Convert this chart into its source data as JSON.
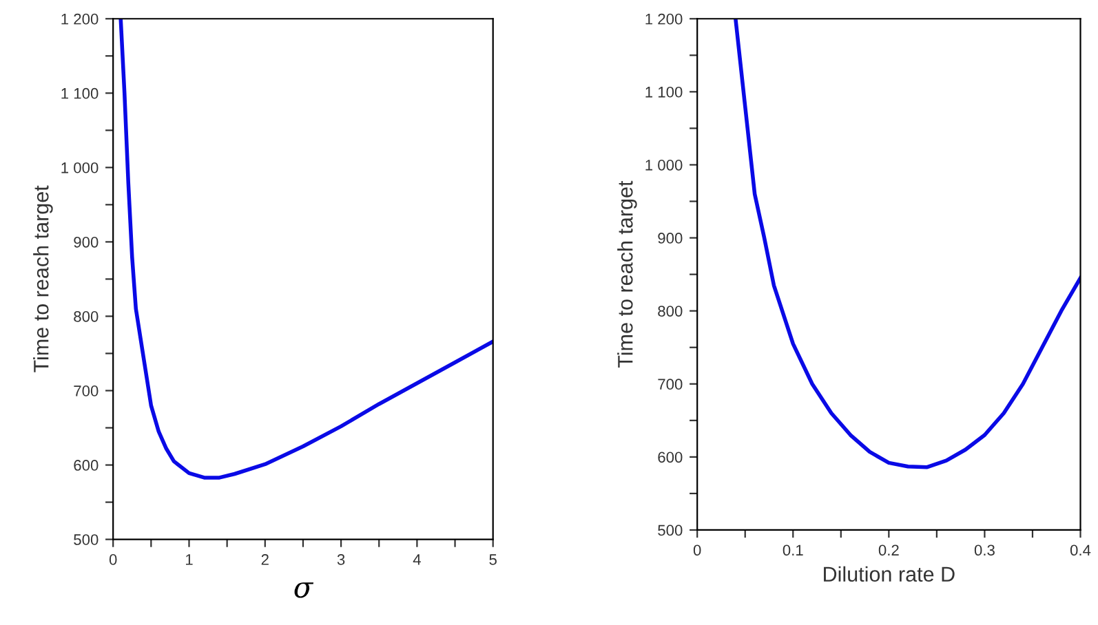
{
  "chart_data": [
    {
      "type": "line",
      "xlabel": "σ",
      "ylabel": "Time to reach target",
      "xlim": [
        0,
        5
      ],
      "ylim": [
        500,
        1200
      ],
      "xticks": [
        0,
        {
          "value": 0.5,
          "label": null
        },
        1,
        {
          "value": 1.5,
          "label": null
        },
        2,
        {
          "value": 2.5,
          "label": null
        },
        3,
        {
          "value": 3.5,
          "label": null
        },
        4,
        {
          "value": 4.5,
          "label": null
        },
        5
      ],
      "yticks": [
        500,
        {
          "value": 550,
          "label": null
        },
        600,
        {
          "value": 650,
          "label": null
        },
        700,
        {
          "value": 750,
          "label": null
        },
        800,
        {
          "value": 850,
          "label": null
        },
        900,
        {
          "value": 950,
          "label": null
        },
        {
          "value": 1000,
          "label": "1 000"
        },
        {
          "value": 1050,
          "label": null
        },
        {
          "value": 1100,
          "label": "1 100"
        },
        {
          "value": 1150,
          "label": null
        },
        {
          "value": 1200,
          "label": "1 200"
        }
      ],
      "grid": false,
      "legend": false,
      "series": [
        {
          "color": "#0a0ae6",
          "x": [
            0.1,
            0.15,
            0.2,
            0.25,
            0.3,
            0.4,
            0.5,
            0.6,
            0.7,
            0.8,
            1.0,
            1.2,
            1.4,
            1.6,
            2.0,
            2.5,
            3.0,
            3.5,
            4.0,
            4.5,
            5.0
          ],
          "values": [
            1200,
            1100,
            980,
            880,
            810,
            745,
            680,
            645,
            622,
            605,
            589,
            583,
            583,
            588,
            601,
            625,
            652,
            682,
            710,
            738,
            766
          ]
        }
      ]
    },
    {
      "type": "line",
      "xlabel": "Dilution rate D",
      "ylabel": "Time to reach target",
      "xlim": [
        0,
        0.4
      ],
      "ylim": [
        500,
        1200
      ],
      "xticks": [
        0,
        {
          "value": 0.05,
          "label": null
        },
        0.1,
        {
          "value": 0.15,
          "label": null
        },
        0.2,
        {
          "value": 0.25,
          "label": null
        },
        0.3,
        {
          "value": 0.35,
          "label": null
        },
        0.4
      ],
      "yticks": [
        500,
        {
          "value": 550,
          "label": null
        },
        600,
        {
          "value": 650,
          "label": null
        },
        700,
        {
          "value": 750,
          "label": null
        },
        800,
        {
          "value": 850,
          "label": null
        },
        900,
        {
          "value": 950,
          "label": null
        },
        {
          "value": 1000,
          "label": "1 000"
        },
        {
          "value": 1050,
          "label": null
        },
        {
          "value": 1100,
          "label": "1 100"
        },
        {
          "value": 1150,
          "label": null
        },
        {
          "value": 1200,
          "label": "1 200"
        }
      ],
      "grid": false,
      "legend": false,
      "series": [
        {
          "color": "#0a0ae6",
          "x": [
            0.04,
            0.05,
            0.06,
            0.07,
            0.08,
            0.1,
            0.12,
            0.14,
            0.16,
            0.18,
            0.2,
            0.22,
            0.24,
            0.26,
            0.28,
            0.3,
            0.32,
            0.34,
            0.36,
            0.38,
            0.4
          ],
          "values": [
            1200,
            1080,
            960,
            900,
            835,
            755,
            700,
            660,
            630,
            607,
            592,
            587,
            586,
            595,
            610,
            630,
            660,
            700,
            750,
            800,
            845
          ]
        }
      ]
    }
  ]
}
